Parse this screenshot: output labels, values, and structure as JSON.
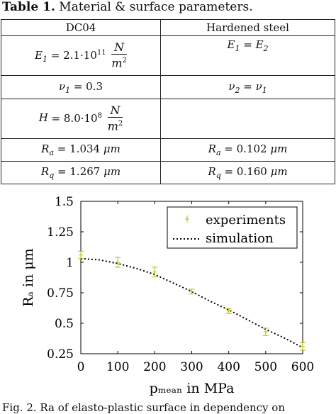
{
  "table": {
    "caption_label": "Table 1.",
    "caption_text": "Material & surface parameters.",
    "headers": [
      "DC04",
      "Hardened steel"
    ],
    "rows": [
      {
        "left": "E1 = 2.1·10^11 N/m^2",
        "right": "E1 = E2"
      },
      {
        "left": "ν1 = 0.3",
        "right": "ν2 = ν1"
      },
      {
        "left": "H = 8.0·10^8 N/m^2",
        "right": ""
      },
      {
        "left": "Ra = 1.034 μm",
        "right": "Ra = 0.102 μm"
      },
      {
        "left": "Rq = 1.267 μm",
        "right": "Rq = 0.160 μm"
      }
    ]
  },
  "figure": {
    "caption": "Fig. 2. Ra of elasto-plastic surface in dependency on"
  },
  "chart_data": {
    "type": "line",
    "xlabel": "p_mean in MPa",
    "ylabel": "Ra in μm",
    "xlim": [
      0,
      600
    ],
    "ylim": [
      0.25,
      1.5
    ],
    "x_ticks": [
      0,
      100,
      200,
      300,
      400,
      500,
      600
    ],
    "y_ticks": [
      0.25,
      0.5,
      0.75,
      1,
      1.25,
      1.5
    ],
    "y_tick_labels": [
      "0.25",
      "0.5",
      "0.75",
      "1",
      "1.25",
      "1.5"
    ],
    "legend_position": "top-right",
    "series": [
      {
        "name": "experiments",
        "style": "errorbar",
        "color": "#b8b800",
        "x": [
          0,
          100,
          200,
          300,
          400,
          500,
          600
        ],
        "y": [
          1.06,
          1.0,
          0.92,
          0.76,
          0.6,
          0.43,
          0.31
        ],
        "err": [
          0.03,
          0.04,
          0.04,
          0.02,
          0.02,
          0.03,
          0.03
        ]
      },
      {
        "name": "simulation",
        "style": "dotted",
        "color": "#000000",
        "x": [
          0,
          50,
          100,
          150,
          200,
          250,
          300,
          350,
          400,
          450,
          500,
          550,
          600
        ],
        "y": [
          1.03,
          1.02,
          0.99,
          0.95,
          0.9,
          0.83,
          0.76,
          0.68,
          0.61,
          0.53,
          0.45,
          0.38,
          0.3
        ]
      }
    ]
  }
}
